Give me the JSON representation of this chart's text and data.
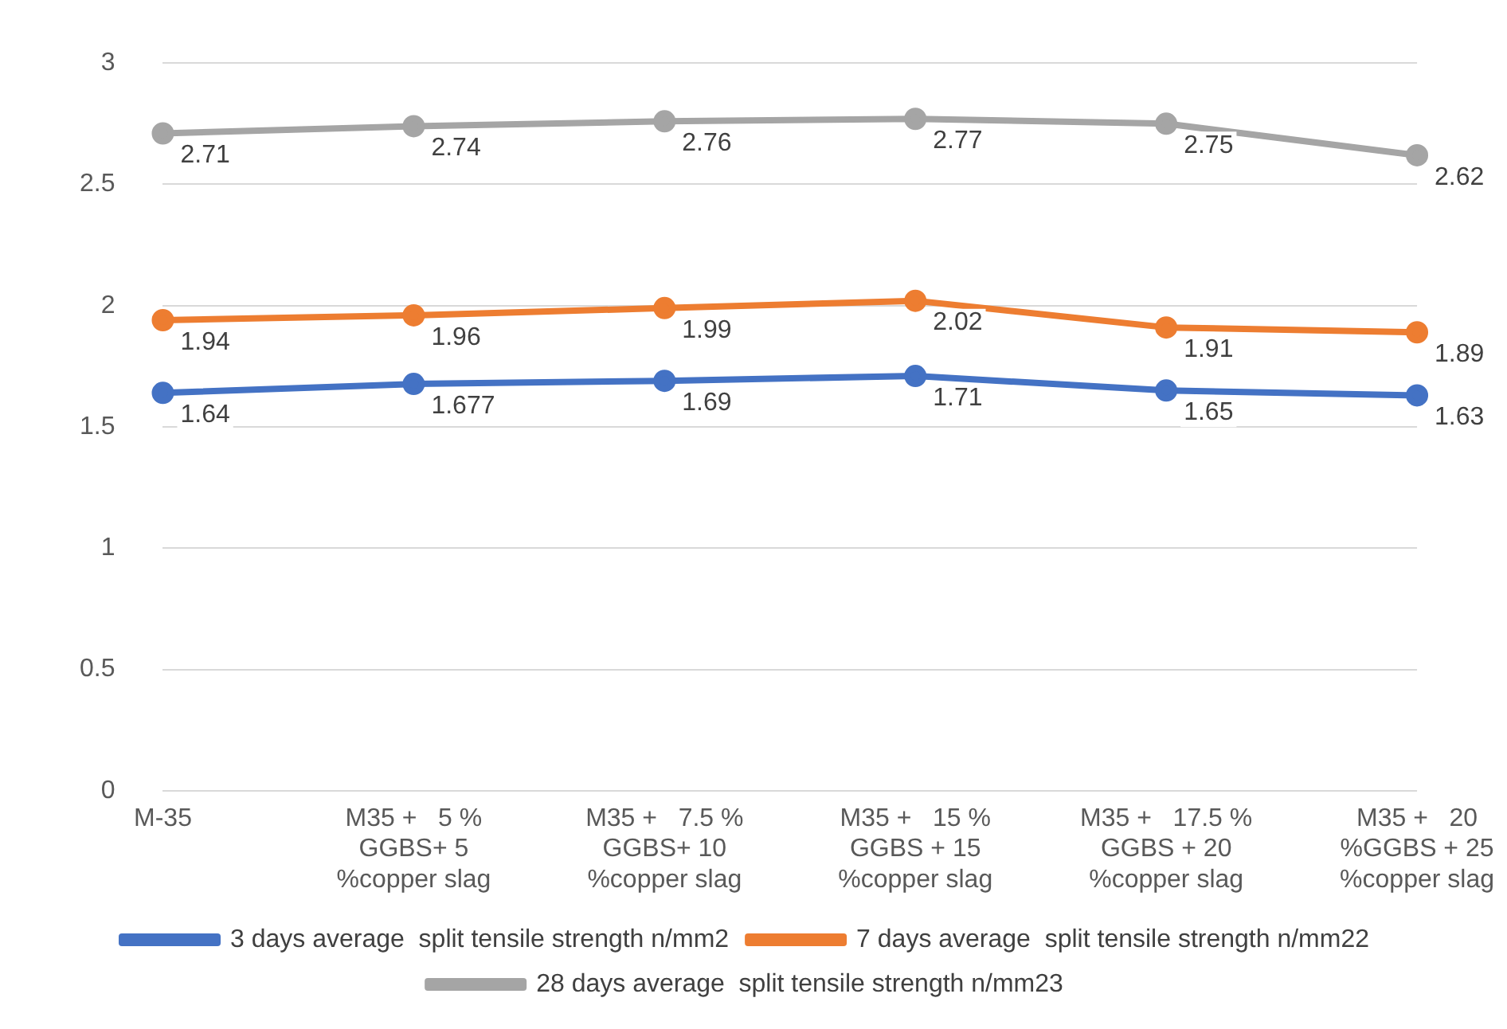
{
  "chart_data": {
    "type": "line",
    "categories": [
      "M-35",
      "M35 +   5 %\nGGBS+ 5\n%copper slag",
      "M35 +   7.5 %\nGGBS+ 10\n%copper slag",
      "M35 +   15 %\nGGBS + 15\n%copper slag",
      "M35 +   17.5 %\nGGBS + 20\n%copper slag",
      "M35 +   20\n%GGBS + 25\n%copper slag"
    ],
    "series": [
      {
        "name": "3 days average  split tensile strength n/mm2",
        "color": "#4472c4",
        "values": [
          1.64,
          1.677,
          1.69,
          1.71,
          1.65,
          1.63
        ]
      },
      {
        "name": "7 days average  split tensile strength n/mm22",
        "color": "#ed7d31",
        "values": [
          1.94,
          1.96,
          1.99,
          2.02,
          1.91,
          1.89
        ]
      },
      {
        "name": "28 days average  split tensile strength n/mm23",
        "color": "#a5a5a5",
        "values": [
          2.71,
          2.74,
          2.76,
          2.77,
          2.75,
          2.62
        ]
      }
    ],
    "ylim": [
      0,
      3
    ],
    "yticks": [
      0,
      0.5,
      1,
      1.5,
      2,
      2.5,
      3
    ],
    "grid": "y",
    "legend": "bottom",
    "marker": "circle",
    "line_style": "solid",
    "data_labels": true
  }
}
